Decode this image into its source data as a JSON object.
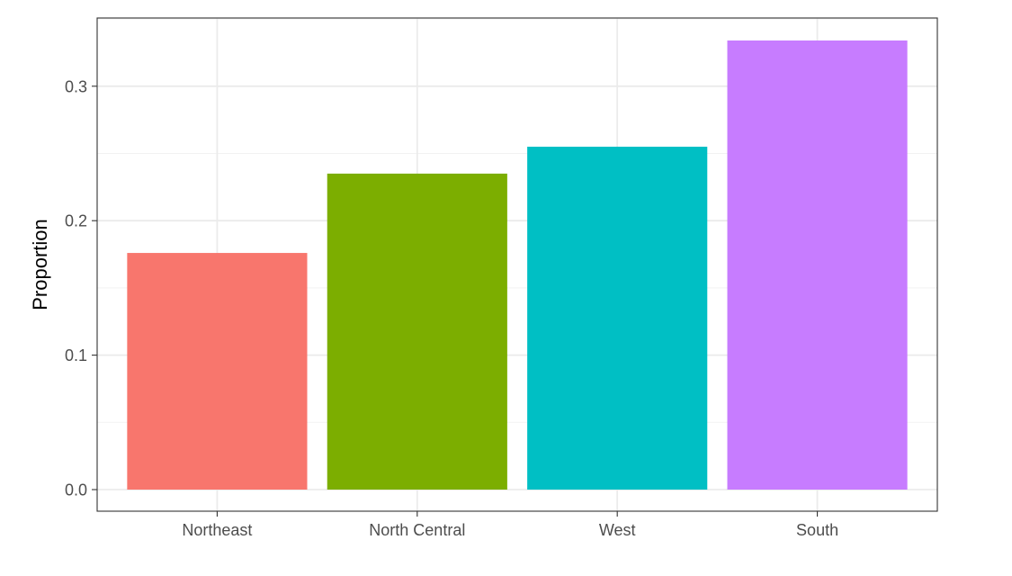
{
  "chart_data": {
    "type": "bar",
    "title": "",
    "xlabel": "",
    "ylabel": "Proportion",
    "categories": [
      "Northeast",
      "North Central",
      "West",
      "South"
    ],
    "values": [
      0.176,
      0.235,
      0.255,
      0.334
    ],
    "colors": [
      "#F8766D",
      "#7CAE00",
      "#00BFC4",
      "#C77CFF"
    ],
    "ylim": [
      -0.0167,
      0.35
    ],
    "yticks": [
      0.0,
      0.1,
      0.2,
      0.3
    ],
    "ytick_labels": [
      "0.0",
      "0.1",
      "0.2",
      "0.3"
    ],
    "grid": true,
    "legend": "none",
    "theme": "bw"
  }
}
